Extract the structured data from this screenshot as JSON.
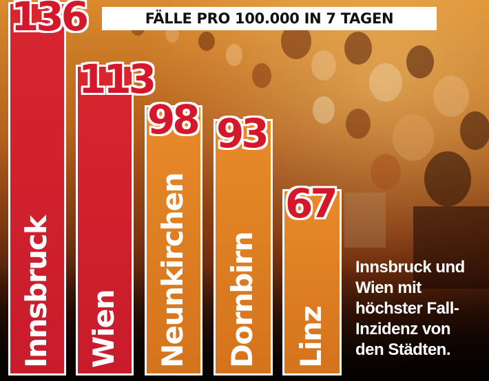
{
  "colors": {
    "bar_red_top": "#d8262e",
    "bar_red_bottom": "#c81b2c",
    "bar_orange_top": "#e88a2a",
    "bar_orange_bottom": "#d4731c",
    "value_text": "#d4172a",
    "title_bg": "#ffffff",
    "caption_text": "#ffffff"
  },
  "chart_data": {
    "type": "bar",
    "title": "FÄLLE PRO 100.000 IN 7 TAGEN",
    "categories": [
      "Innsbruck",
      "Wien",
      "Neunkirchen",
      "Dornbirn",
      "Linz"
    ],
    "values": [
      136,
      113,
      98,
      93,
      67
    ],
    "value_labels": [
      "136",
      "113",
      "98",
      "93",
      "67"
    ],
    "bar_colors": [
      "red",
      "red",
      "orange",
      "orange",
      "orange"
    ],
    "orientation": "vertical",
    "category_label_rotation": "vertical, bottom-to-top",
    "xlabel": "",
    "ylabel": ""
  },
  "caption": {
    "lines": [
      "Innsbruck und",
      "Wien mit",
      "höchster Fall-",
      "Inzidenz von",
      "den Städten."
    ]
  }
}
